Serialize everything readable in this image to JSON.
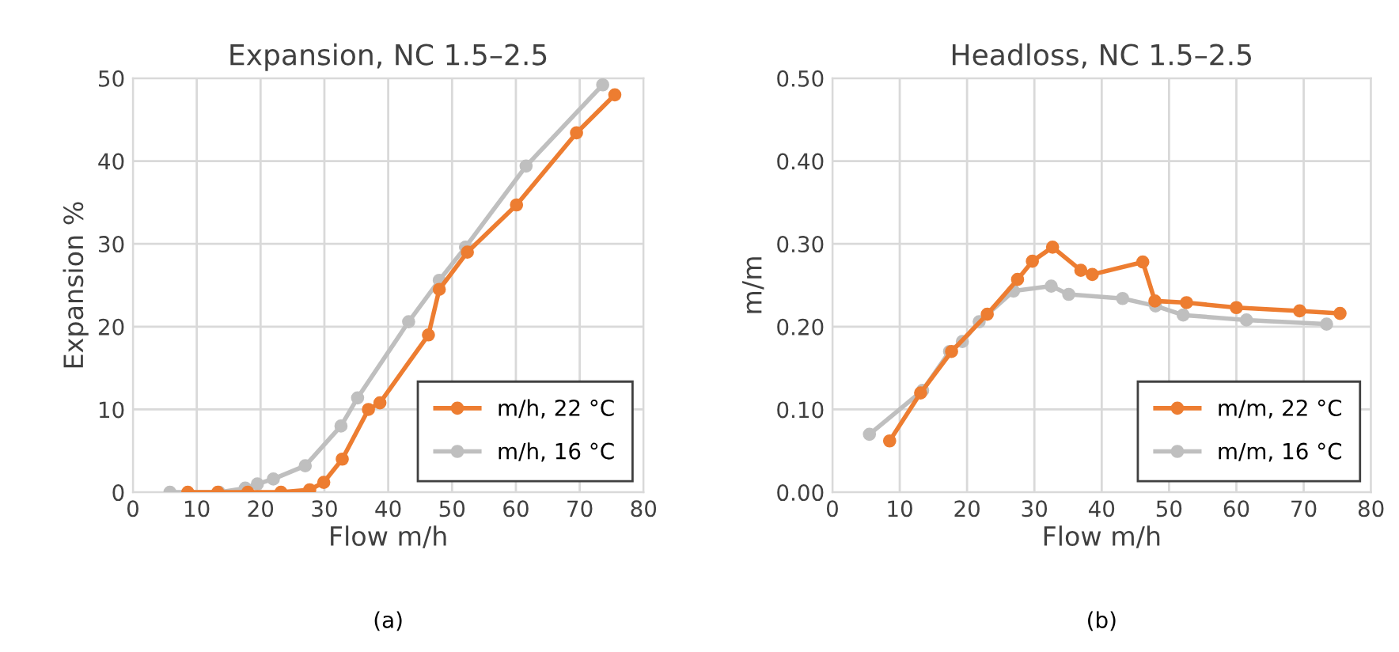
{
  "chart_data": [
    {
      "type": "line",
      "title": "Expansion, NC 1.5–2.5",
      "xlabel": "Flow m/h",
      "ylabel": "Expansion %",
      "xlim": [
        0,
        80
      ],
      "xticks": [
        0,
        10,
        20,
        30,
        40,
        50,
        60,
        70,
        80
      ],
      "ylim": [
        0,
        50
      ],
      "yticks": [
        0,
        10,
        20,
        30,
        40,
        50
      ],
      "grid": true,
      "legend": "bottom right",
      "marker": "circle",
      "annotations": [
        "(a)"
      ],
      "series": [
        {
          "name": "m/h, 22 °C",
          "color": "#ed7d31",
          "x": [
            8.6,
            13.3,
            18,
            23.2,
            27.7,
            29.9,
            32.8,
            36.9,
            38.7,
            46.3,
            48,
            52.4,
            60.1,
            69.5,
            75.5
          ],
          "values": [
            0,
            0,
            0,
            0,
            0.3,
            1.2,
            4.0,
            10.0,
            10.8,
            19.0,
            24.5,
            29.0,
            34.7,
            43.4,
            48.0
          ]
        },
        {
          "name": "m/h, 16 °C",
          "color": "#bfbfbf",
          "x": [
            5.8,
            13.5,
            17.6,
            19.5,
            22,
            27,
            32.6,
            35.2,
            43.2,
            48,
            52.1,
            61.6,
            73.6
          ],
          "values": [
            0,
            0,
            0.5,
            1.0,
            1.6,
            3.2,
            8.0,
            11.4,
            20.6,
            25.6,
            29.6,
            39.4,
            49.2
          ]
        }
      ]
    },
    {
      "type": "line",
      "title": "Headloss, NC 1.5–2.5",
      "xlabel": "Flow m/h",
      "ylabel": "m/m",
      "xlim": [
        0,
        80
      ],
      "xticks": [
        0,
        10,
        20,
        30,
        40,
        50,
        60,
        70,
        80
      ],
      "ylim": [
        0,
        0.5
      ],
      "yticks": [
        {
          "value": 0,
          "label": "0.00"
        },
        {
          "value": 0.1,
          "label": "0.10"
        },
        {
          "value": 0.2,
          "label": "0.20"
        },
        {
          "value": 0.3,
          "label": "0.30"
        },
        {
          "value": 0.4,
          "label": "0.40"
        },
        {
          "value": 0.5,
          "label": "0.50"
        }
      ],
      "grid": true,
      "legend": "bottom right",
      "marker": "circle",
      "annotations": [
        "(b)"
      ],
      "series": [
        {
          "name": "m/m, 22 °C",
          "color": "#ed7d31",
          "x": [
            8.5,
            13.1,
            17.7,
            23.0,
            27.5,
            29.7,
            32.7,
            36.9,
            38.6,
            46.1,
            47.9,
            52.6,
            60.0,
            69.4,
            75.4
          ],
          "values": [
            0.062,
            0.12,
            0.17,
            0.215,
            0.257,
            0.279,
            0.296,
            0.268,
            0.263,
            0.278,
            0.231,
            0.229,
            0.223,
            0.219,
            0.216
          ]
        },
        {
          "name": "m/m, 16 °C",
          "color": "#bfbfbf",
          "x": [
            5.5,
            13.4,
            17.4,
            19.3,
            21.8,
            26.9,
            32.5,
            35.1,
            43.1,
            48.0,
            52.1,
            61.5,
            73.4
          ],
          "values": [
            0.07,
            0.123,
            0.17,
            0.182,
            0.206,
            0.243,
            0.249,
            0.239,
            0.234,
            0.225,
            0.214,
            0.208,
            0.203
          ]
        }
      ]
    }
  ]
}
